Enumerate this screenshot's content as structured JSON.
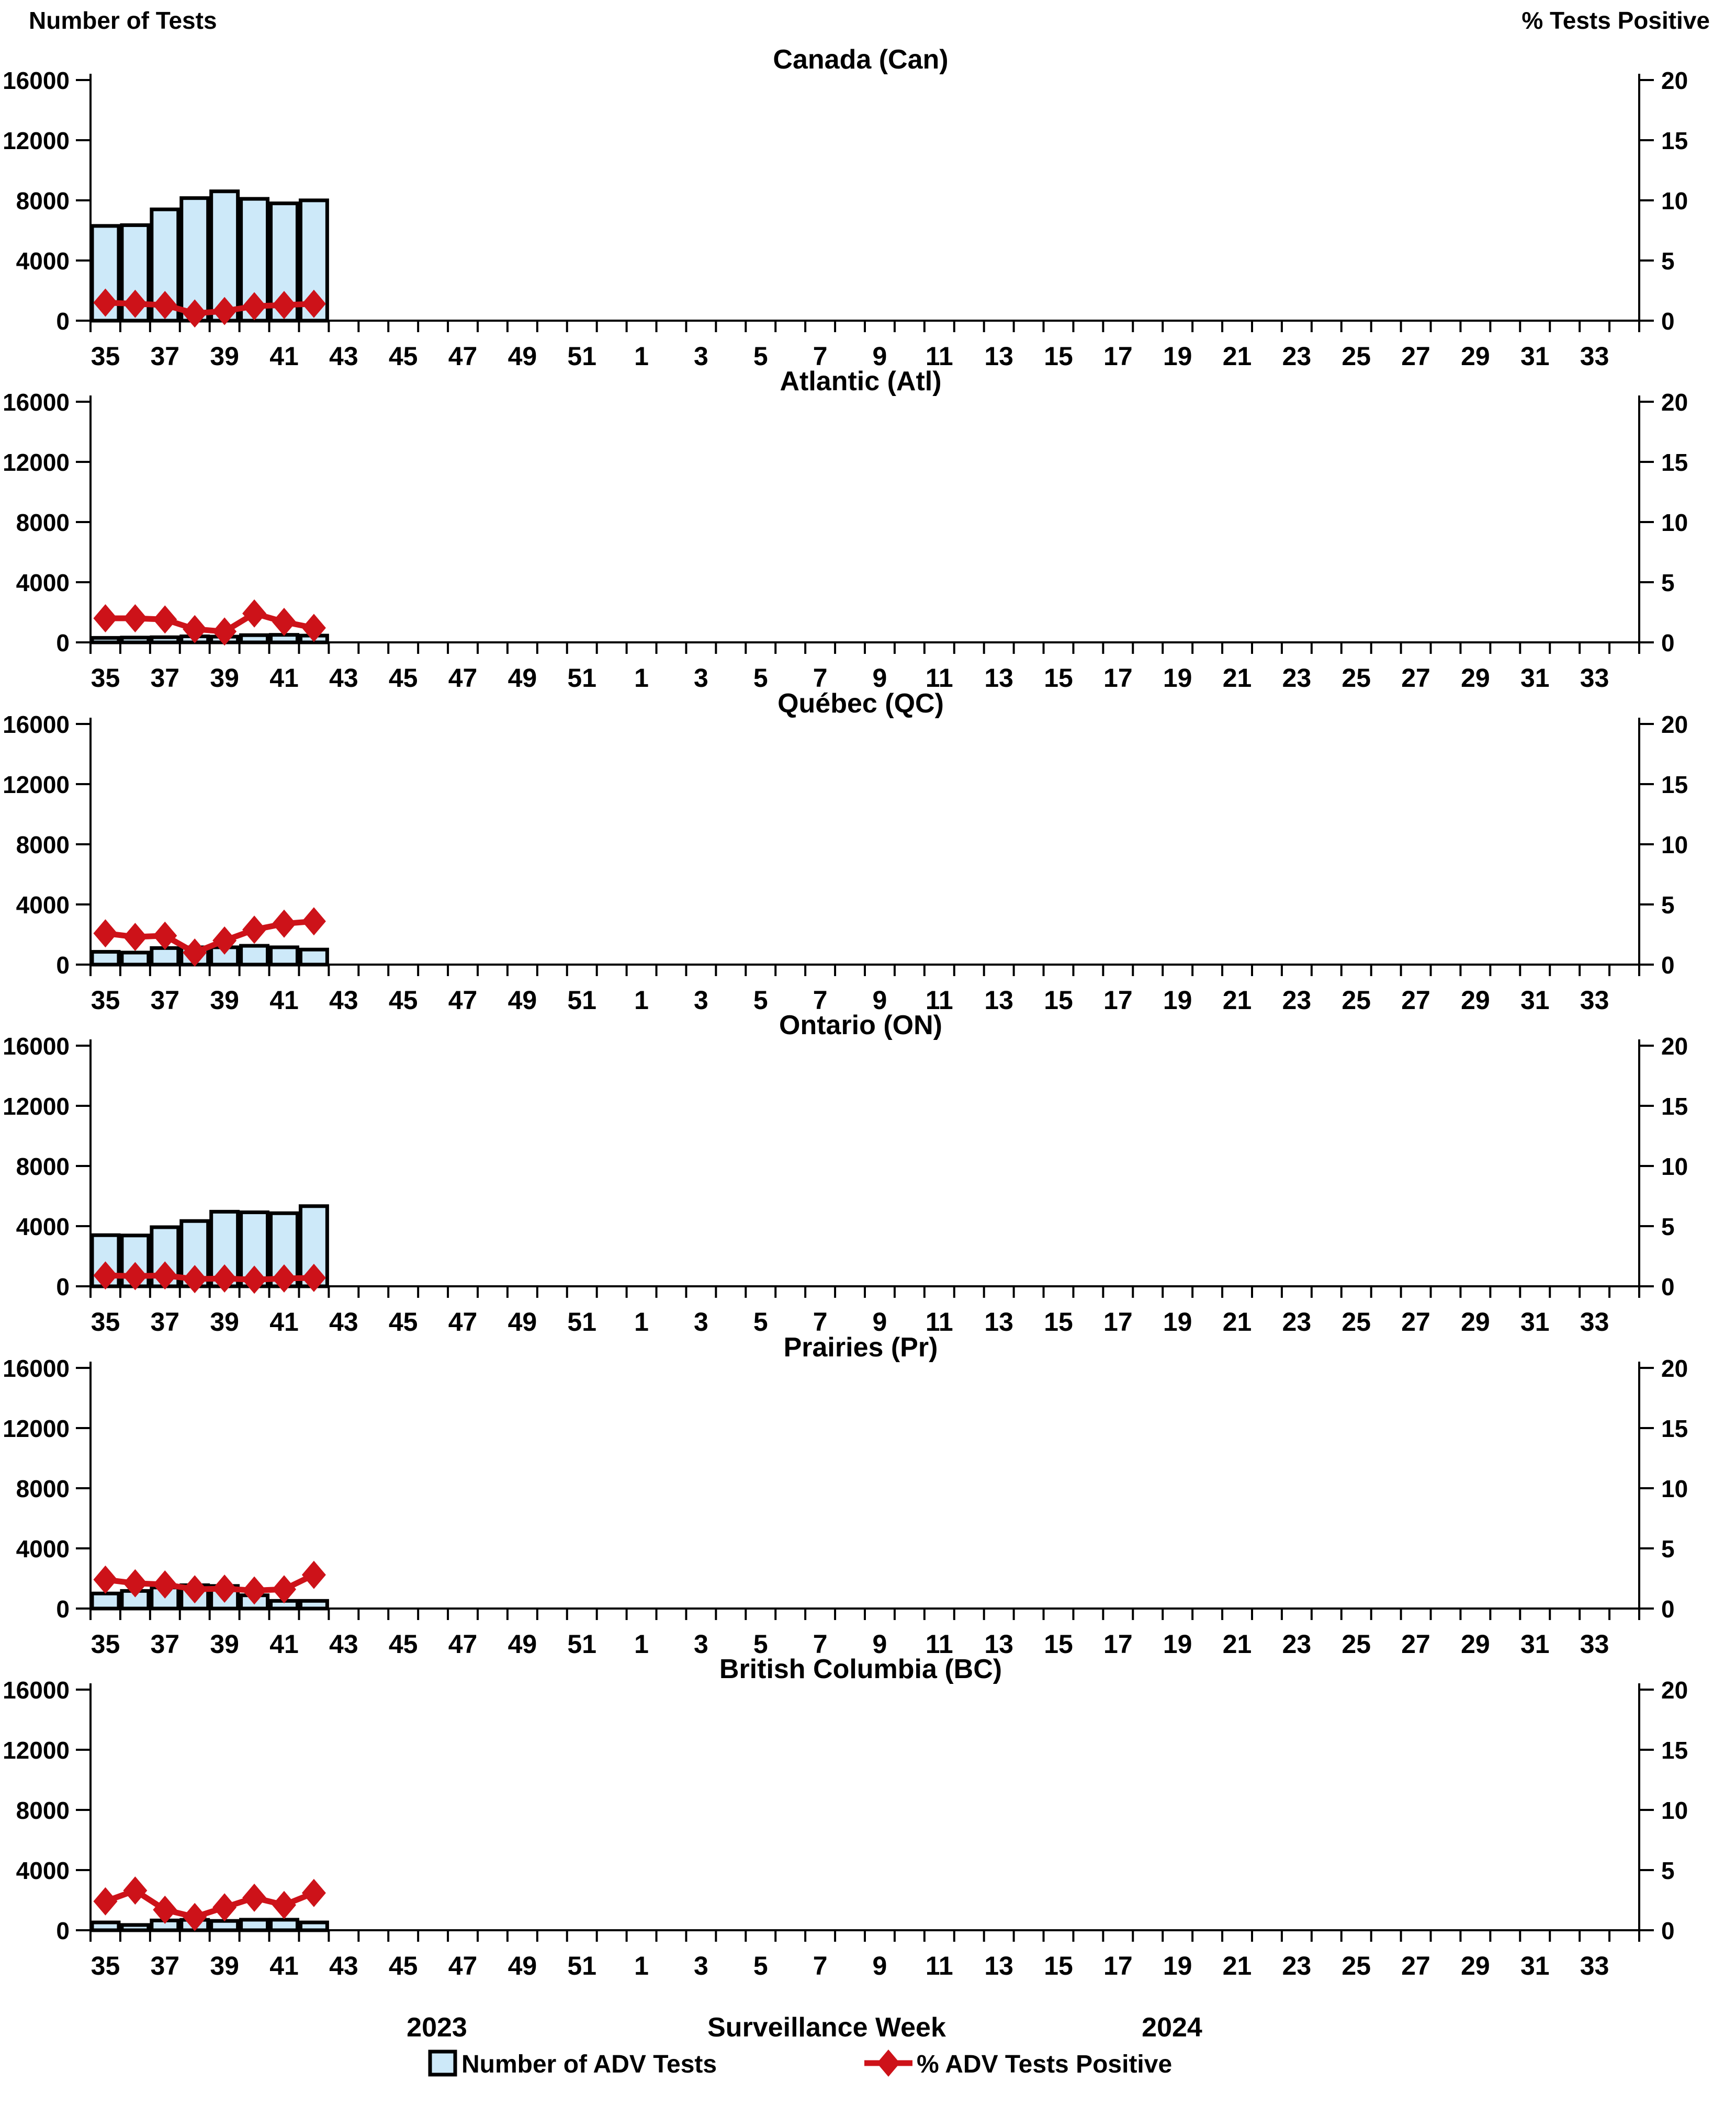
{
  "left_axis_title": "Number of Tests",
  "right_axis_title": "% Tests Positive",
  "x_axis_title": "Surveillance Week",
  "footer": {
    "year_left": "2023",
    "year_right": "2024"
  },
  "legend": {
    "bars": "Number of ADV Tests",
    "line": "% ADV Tests Positive",
    "position": "bottom-center"
  },
  "colors": {
    "bar_fill": "#cde9f9",
    "bar_border": "#000000",
    "line": "#cd1219",
    "text": "#000000"
  },
  "axes": {
    "left_ticks": [
      0,
      4000,
      8000,
      12000,
      16000
    ],
    "left_max": 16000,
    "right_ticks": [
      0,
      5,
      10,
      15,
      20
    ],
    "right_max": 20,
    "x_tick_labels": [
      "35",
      "37",
      "39",
      "41",
      "43",
      "45",
      "47",
      "49",
      "51",
      "1",
      "3",
      "5",
      "7",
      "9",
      "11",
      "13",
      "15",
      "17",
      "19",
      "21",
      "23",
      "25",
      "27",
      "29",
      "31",
      "33"
    ],
    "weeks_total_slots": 52,
    "grid": false
  },
  "chart_data": [
    {
      "type": "bar+line",
      "title": "Canada (Can)",
      "weeks": [
        35,
        36,
        37,
        38,
        39,
        40,
        41,
        42
      ],
      "series": [
        {
          "name": "Number of ADV Tests",
          "axis": "left",
          "values": [
            6300,
            6350,
            7400,
            8150,
            8600,
            8100,
            7800,
            8000
          ]
        },
        {
          "name": "% ADV Tests Positive",
          "axis": "right",
          "values": [
            1.5,
            1.4,
            1.3,
            0.6,
            0.8,
            1.2,
            1.3,
            1.4
          ]
        }
      ]
    },
    {
      "type": "bar+line",
      "title": "Atlantic (Atl)",
      "weeks": [
        35,
        36,
        37,
        38,
        39,
        40,
        41,
        42
      ],
      "series": [
        {
          "name": "Number of ADV Tests",
          "axis": "left",
          "values": [
            300,
            320,
            340,
            400,
            380,
            480,
            500,
            450
          ]
        },
        {
          "name": "% ADV Tests Positive",
          "axis": "right",
          "values": [
            2.0,
            2.0,
            1.9,
            1.1,
            0.9,
            2.4,
            1.7,
            1.2
          ]
        }
      ]
    },
    {
      "type": "bar+line",
      "title": "Québec (QC)",
      "weeks": [
        35,
        36,
        37,
        38,
        39,
        40,
        41,
        42
      ],
      "series": [
        {
          "name": "Number of ADV Tests",
          "axis": "left",
          "values": [
            850,
            800,
            1100,
            1150,
            1150,
            1250,
            1150,
            1000
          ]
        },
        {
          "name": "% ADV Tests Positive",
          "axis": "right",
          "values": [
            2.6,
            2.3,
            2.4,
            1.0,
            2.0,
            2.9,
            3.4,
            3.6
          ]
        }
      ]
    },
    {
      "type": "bar+line",
      "title": "Ontario (ON)",
      "weeks": [
        35,
        36,
        37,
        38,
        39,
        40,
        41,
        42
      ],
      "series": [
        {
          "name": "Number of ADV Tests",
          "axis": "left",
          "values": [
            3400,
            3380,
            3930,
            4340,
            4960,
            4920,
            4860,
            5330
          ]
        },
        {
          "name": "% ADV Tests Positive",
          "axis": "right",
          "values": [
            0.9,
            0.85,
            0.9,
            0.6,
            0.65,
            0.55,
            0.65,
            0.7
          ]
        }
      ]
    },
    {
      "type": "bar+line",
      "title": "Prairies (Pr)",
      "weeks": [
        35,
        36,
        37,
        38,
        39,
        40,
        41,
        42
      ],
      "series": [
        {
          "name": "Number of ADV Tests",
          "axis": "left",
          "values": [
            1000,
            1170,
            1400,
            1550,
            1500,
            880,
            510,
            510
          ]
        },
        {
          "name": "% ADV Tests Positive",
          "axis": "right",
          "values": [
            2.4,
            2.1,
            2.0,
            1.6,
            1.65,
            1.5,
            1.6,
            2.8
          ]
        }
      ]
    },
    {
      "type": "bar+line",
      "title": "British Columbia (BC)",
      "weeks": [
        35,
        36,
        37,
        38,
        39,
        40,
        41,
        42
      ],
      "series": [
        {
          "name": "Number of ADV Tests",
          "axis": "left",
          "values": [
            520,
            350,
            650,
            690,
            620,
            700,
            700,
            520
          ]
        },
        {
          "name": "% ADV Tests Positive",
          "axis": "right",
          "values": [
            2.4,
            3.3,
            1.7,
            1.1,
            1.9,
            2.7,
            2.1,
            3.1
          ]
        }
      ]
    }
  ]
}
